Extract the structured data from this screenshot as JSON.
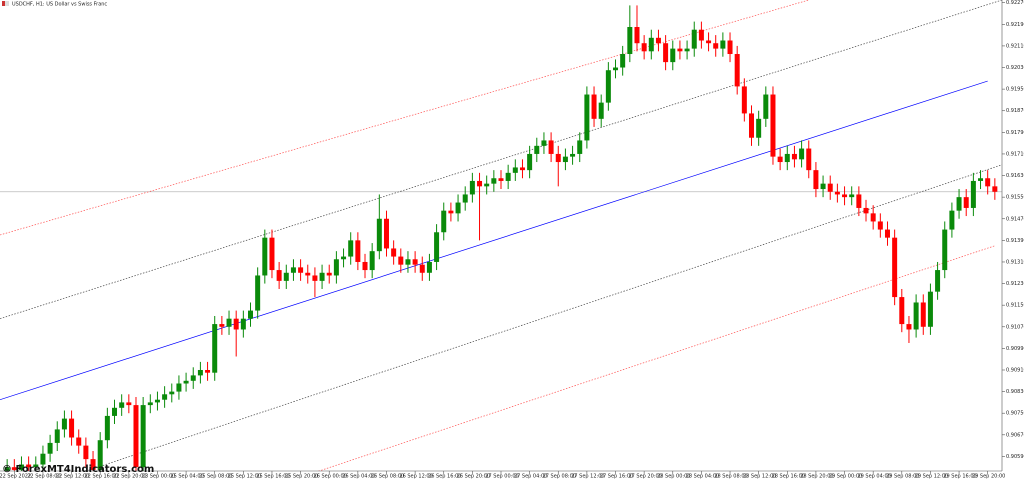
{
  "chart_data": {
    "type": "candlestick",
    "title": "USDCHF, H1: US Dollar vs Swiss Franc",
    "watermark": "© ForexMT4Indicators.com",
    "bull_color": "#0a8a0a",
    "bear_color": "#ff0000",
    "open": [
      0.9053,
      0.9055,
      0.9054,
      0.9056,
      0.9055,
      0.9056,
      0.906,
      0.9064,
      0.9069,
      0.9073,
      0.9066,
      0.9063,
      0.9058,
      0.9054,
      0.9065,
      0.9074,
      0.9077,
      0.9079,
      0.9078,
      0.9055,
      0.9078,
      0.9079,
      0.908,
      0.9082,
      0.9083,
      0.9086,
      0.9087,
      0.9089,
      0.9091,
      0.909,
      0.9108,
      0.9107,
      0.911,
      0.9106,
      0.911,
      0.9113,
      0.9126,
      0.914,
      0.9128,
      0.9124,
      0.9127,
      0.9129,
      0.9127,
      0.9126,
      0.9124,
      0.9127,
      0.9126,
      0.9132,
      0.9133,
      0.9139,
      0.9131,
      0.9128,
      0.9135,
      0.9147,
      0.9136,
      0.9133,
      0.913,
      0.9132,
      0.913,
      0.9127,
      0.9131,
      0.9142,
      0.915,
      0.9149,
      0.9153,
      0.9156,
      0.9161,
      0.9159,
      0.916,
      0.9162,
      0.9161,
      0.9164,
      0.9166,
      0.9165,
      0.9171,
      0.9174,
      0.9176,
      0.9171,
      0.9168,
      0.917,
      0.9171,
      0.9176,
      0.9193,
      0.9184,
      0.919,
      0.9202,
      0.9203,
      0.9208,
      0.9218,
      0.9212,
      0.9209,
      0.9214,
      0.9212,
      0.9205,
      0.921,
      0.9209,
      0.921,
      0.9217,
      0.9213,
      0.9212,
      0.921,
      0.9213,
      0.9208,
      0.9196,
      0.9186,
      0.9177,
      0.9184,
      0.9193,
      0.917,
      0.9168,
      0.9171,
      0.9169,
      0.9173,
      0.9165,
      0.9158,
      0.916,
      0.9157,
      0.9156,
      0.9155,
      0.9156,
      0.9151,
      0.9149,
      0.9146,
      0.9143,
      0.914,
      0.9118,
      0.9108,
      0.9106,
      0.9116,
      0.9107,
      0.912,
      0.9128,
      0.9143,
      0.915,
      0.9155,
      0.9151,
      0.9161,
      0.9162,
      0.9159
    ],
    "high": [
      0.9058,
      0.9058,
      0.9059,
      0.9059,
      0.9059,
      0.9063,
      0.9067,
      0.9072,
      0.9076,
      0.9076,
      0.9069,
      0.9066,
      0.9061,
      0.9068,
      0.9077,
      0.908,
      0.9082,
      0.9082,
      0.9081,
      0.9081,
      0.9082,
      0.9083,
      0.9085,
      0.9086,
      0.9089,
      0.909,
      0.9092,
      0.9094,
      0.9094,
      0.9111,
      0.9111,
      0.9113,
      0.9113,
      0.9113,
      0.9116,
      0.9129,
      0.9143,
      0.9143,
      0.9131,
      0.913,
      0.9132,
      0.9132,
      0.913,
      0.9129,
      0.913,
      0.913,
      0.9135,
      0.9136,
      0.9142,
      0.9142,
      0.9134,
      0.9138,
      0.9156,
      0.915,
      0.9139,
      0.9136,
      0.9135,
      0.9135,
      0.9133,
      0.9134,
      0.9145,
      0.9153,
      0.9153,
      0.9156,
      0.9159,
      0.9164,
      0.9164,
      0.9163,
      0.9165,
      0.9165,
      0.9167,
      0.9169,
      0.9169,
      0.9174,
      0.9177,
      0.9179,
      0.9179,
      0.9174,
      0.9173,
      0.9174,
      0.9179,
      0.9196,
      0.9196,
      0.9193,
      0.9205,
      0.9206,
      0.9211,
      0.9226,
      0.9226,
      0.9215,
      0.9217,
      0.9217,
      0.9215,
      0.9213,
      0.9213,
      0.9213,
      0.922,
      0.922,
      0.9216,
      0.9215,
      0.9216,
      0.9216,
      0.9211,
      0.9199,
      0.9189,
      0.9187,
      0.9196,
      0.9196,
      0.9173,
      0.9174,
      0.9174,
      0.9176,
      0.9176,
      0.9168,
      0.9163,
      0.9163,
      0.916,
      0.9159,
      0.9159,
      0.9159,
      0.9154,
      0.9152,
      0.9149,
      0.9146,
      0.9143,
      0.9121,
      0.9111,
      0.9119,
      0.9119,
      0.9123,
      0.9131,
      0.9146,
      0.9153,
      0.9158,
      0.9158,
      0.9164,
      0.9165,
      0.9165,
      0.9162
    ],
    "low": [
      0.905,
      0.9051,
      0.9051,
      0.9052,
      0.9052,
      0.9053,
      0.9057,
      0.9061,
      0.9066,
      0.9063,
      0.906,
      0.9055,
      0.9051,
      0.9051,
      0.9062,
      0.9071,
      0.9074,
      0.9075,
      0.9052,
      0.9052,
      0.9075,
      0.9076,
      0.9077,
      0.9079,
      0.908,
      0.9083,
      0.9084,
      0.9086,
      0.9087,
      0.9087,
      0.9104,
      0.9104,
      0.9096,
      0.9103,
      0.9107,
      0.911,
      0.9123,
      0.9125,
      0.9121,
      0.9121,
      0.9124,
      0.9124,
      0.9123,
      0.9118,
      0.9121,
      0.9123,
      0.9123,
      0.9129,
      0.913,
      0.9128,
      0.9125,
      0.9125,
      0.9132,
      0.9133,
      0.913,
      0.9127,
      0.9127,
      0.9127,
      0.9124,
      0.9124,
      0.9128,
      0.9139,
      0.9146,
      0.9146,
      0.915,
      0.9153,
      0.9139,
      0.9156,
      0.9157,
      0.9158,
      0.9158,
      0.9161,
      0.9162,
      0.9162,
      0.9168,
      0.9171,
      0.9168,
      0.9159,
      0.9165,
      0.9167,
      0.9168,
      0.9173,
      0.9181,
      0.9181,
      0.9187,
      0.9199,
      0.92,
      0.9205,
      0.9209,
      0.9206,
      0.9206,
      0.9209,
      0.9202,
      0.9202,
      0.9206,
      0.9206,
      0.9207,
      0.921,
      0.9209,
      0.9207,
      0.9207,
      0.9205,
      0.9193,
      0.9183,
      0.9174,
      0.9174,
      0.9181,
      0.9167,
      0.9165,
      0.9165,
      0.9166,
      0.9166,
      0.9162,
      0.9155,
      0.9155,
      0.9154,
      0.9153,
      0.9152,
      0.9152,
      0.9148,
      0.9146,
      0.9143,
      0.914,
      0.9137,
      0.9115,
      0.9105,
      0.9101,
      0.9103,
      0.9104,
      0.9104,
      0.9117,
      0.9125,
      0.914,
      0.9147,
      0.9148,
      0.9148,
      0.9158,
      0.9156,
      0.9154
    ],
    "close": [
      0.9055,
      0.9054,
      0.9056,
      0.9055,
      0.9056,
      0.906,
      0.9064,
      0.9069,
      0.9073,
      0.9066,
      0.9063,
      0.9058,
      0.9054,
      0.9065,
      0.9074,
      0.9077,
      0.9079,
      0.9078,
      0.9055,
      0.9078,
      0.9079,
      0.908,
      0.9082,
      0.9083,
      0.9086,
      0.9087,
      0.9089,
      0.9091,
      0.909,
      0.9108,
      0.9107,
      0.911,
      0.9106,
      0.911,
      0.9113,
      0.9126,
      0.914,
      0.9128,
      0.9124,
      0.9127,
      0.9129,
      0.9127,
      0.9126,
      0.9124,
      0.9127,
      0.9126,
      0.9132,
      0.9133,
      0.9139,
      0.9131,
      0.9128,
      0.9135,
      0.9147,
      0.9136,
      0.9133,
      0.913,
      0.9132,
      0.913,
      0.9127,
      0.9131,
      0.9142,
      0.915,
      0.9149,
      0.9153,
      0.9156,
      0.9161,
      0.9159,
      0.916,
      0.9162,
      0.9161,
      0.9164,
      0.9166,
      0.9165,
      0.9171,
      0.9174,
      0.9176,
      0.9171,
      0.9168,
      0.917,
      0.9171,
      0.9176,
      0.9193,
      0.9184,
      0.919,
      0.9202,
      0.9203,
      0.9208,
      0.9218,
      0.9212,
      0.9209,
      0.9214,
      0.9212,
      0.9205,
      0.921,
      0.9209,
      0.921,
      0.9217,
      0.9213,
      0.9212,
      0.921,
      0.9213,
      0.9208,
      0.9196,
      0.9186,
      0.9177,
      0.9184,
      0.9193,
      0.917,
      0.9168,
      0.9171,
      0.9169,
      0.9173,
      0.9165,
      0.9158,
      0.916,
      0.9157,
      0.9156,
      0.9155,
      0.9156,
      0.9151,
      0.9149,
      0.9146,
      0.9143,
      0.914,
      0.9118,
      0.9108,
      0.9106,
      0.9116,
      0.9107,
      0.912,
      0.9128,
      0.9143,
      0.915,
      0.9155,
      0.9151,
      0.9161,
      0.9162,
      0.9159,
      0.9157
    ],
    "current_price": 0.9157,
    "lines": [
      {
        "color": "#0000ff",
        "dash": false,
        "x": [
          -1,
          137
        ],
        "values": [
          0.908,
          0.9198
        ]
      },
      {
        "color": "#444444",
        "dash": true,
        "x": [
          -1,
          139
        ],
        "values": [
          0.911,
          0.9228
        ]
      },
      {
        "color": "#ff5050",
        "dash": true,
        "x": [
          -1,
          112
        ],
        "values": [
          0.9141,
          0.9228
        ]
      },
      {
        "color": "#444444",
        "dash": true,
        "x": [
          7,
          139
        ],
        "values": [
          0.905,
          0.9167
        ]
      },
      {
        "color": "#ff5050",
        "dash": true,
        "x": [
          39.5,
          138
        ],
        "values": [
          0.905,
          0.9137
        ]
      }
    ],
    "xlim": [
      -1,
      139
    ],
    "ylim": [
      0.90536,
      0.9228
    ],
    "grid": false,
    "yticks": [
      {
        "value": 0.9227,
        "label": "0.92270"
      },
      {
        "value": 0.9219,
        "label": "0.92190"
      },
      {
        "value": 0.9211,
        "label": "0.92110"
      },
      {
        "value": 0.9203,
        "label": "0.92030"
      },
      {
        "value": 0.9195,
        "label": "0.91950"
      },
      {
        "value": 0.9187,
        "label": "0.91870"
      },
      {
        "value": 0.9179,
        "label": "0.91790"
      },
      {
        "value": 0.9171,
        "label": "0.91710"
      },
      {
        "value": 0.9163,
        "label": "0.91630"
      },
      {
        "value": 0.9155,
        "label": "0.91550"
      },
      {
        "value": 0.9147,
        "label": "0.91470"
      },
      {
        "value": 0.9139,
        "label": "0.91390"
      },
      {
        "value": 0.9131,
        "label": "0.91310"
      },
      {
        "value": 0.9123,
        "label": "0.91230"
      },
      {
        "value": 0.9115,
        "label": "0.91150"
      },
      {
        "value": 0.9107,
        "label": "0.91070"
      },
      {
        "value": 0.9099,
        "label": "0.90990"
      },
      {
        "value": 0.9091,
        "label": "0.90910"
      },
      {
        "value": 0.9083,
        "label": "0.90830"
      },
      {
        "value": 0.9075,
        "label": "0.90750"
      },
      {
        "value": 0.9067,
        "label": "0.90670"
      },
      {
        "value": 0.9059,
        "label": "0.90590"
      }
    ],
    "xticks": [
      {
        "value": 1,
        "label": "22 Sep 2022"
      },
      {
        "value": 5,
        "label": "22 Sep 08:00"
      },
      {
        "value": 9,
        "label": "22 Sep 12:00"
      },
      {
        "value": 13,
        "label": "22 Sep 16:00"
      },
      {
        "value": 17,
        "label": "22 Sep 20:00"
      },
      {
        "value": 21,
        "label": "23 Sep 00:00"
      },
      {
        "value": 25,
        "label": "25 Sep 04:00"
      },
      {
        "value": 29,
        "label": "25 Sep 08:00"
      },
      {
        "value": 33,
        "label": "25 Sep 12:00"
      },
      {
        "value": 37,
        "label": "25 Sep 16:00"
      },
      {
        "value": 41,
        "label": "25 Sep 20:00"
      },
      {
        "value": 45,
        "label": "26 Sep 00:00"
      },
      {
        "value": 49,
        "label": "26 Sep 04:00"
      },
      {
        "value": 53,
        "label": "26 Sep 08:00"
      },
      {
        "value": 57,
        "label": "26 Sep 12:00"
      },
      {
        "value": 61,
        "label": "26 Sep 16:00"
      },
      {
        "value": 65,
        "label": "26 Sep 20:00"
      },
      {
        "value": 69,
        "label": "27 Sep 00:00"
      },
      {
        "value": 73,
        "label": "27 Sep 04:00"
      },
      {
        "value": 77,
        "label": "27 Sep 08:00"
      },
      {
        "value": 81,
        "label": "27 Sep 12:00"
      },
      {
        "value": 85,
        "label": "27 Sep 16:00"
      },
      {
        "value": 89,
        "label": "27 Sep 20:00"
      },
      {
        "value": 93,
        "label": "28 Sep 00:00"
      },
      {
        "value": 97,
        "label": "28 Sep 04:00"
      },
      {
        "value": 101,
        "label": "28 Sep 08:00"
      },
      {
        "value": 105,
        "label": "28 Sep 12:00"
      },
      {
        "value": 109,
        "label": "28 Sep 16:00"
      },
      {
        "value": 113,
        "label": "28 Sep 20:00"
      },
      {
        "value": 117,
        "label": "29 Sep 00:00"
      },
      {
        "value": 121,
        "label": "29 Sep 04:00"
      },
      {
        "value": 125,
        "label": "29 Sep 08:00"
      },
      {
        "value": 129,
        "label": "29 Sep 12:00"
      },
      {
        "value": 133,
        "label": "29 Sep 16:00"
      },
      {
        "value": 137,
        "label": "29 Sep 20:00"
      }
    ]
  }
}
